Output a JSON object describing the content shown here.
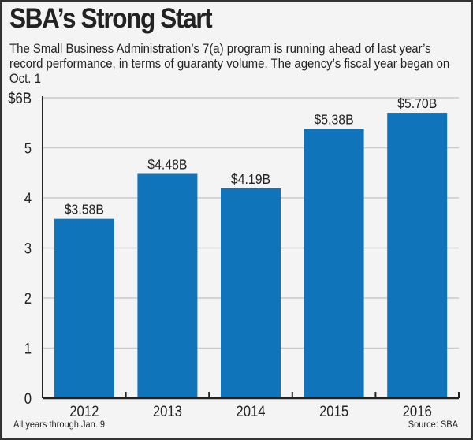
{
  "title": "SBA’s Strong Start",
  "subtitle": "The Small Business Administration’s 7(a) program is running ahead of last year’s record performance, in terms of guaranty volume. The agency’s fiscal year began on Oct. 1",
  "chart_data": {
    "type": "bar",
    "title": "SBA’s Strong Start",
    "categories": [
      "2012",
      "2013",
      "2014",
      "2015",
      "2016"
    ],
    "values": [
      3.58,
      4.48,
      4.19,
      5.38,
      5.7
    ],
    "data_labels": [
      "$3.58B",
      "$4.48B",
      "$4.19B",
      "$5.38B",
      "$5.70B"
    ],
    "ylim": [
      0,
      6
    ],
    "yticks": [
      "0",
      "1",
      "2",
      "3",
      "4",
      "5",
      "$6B"
    ],
    "grid": true,
    "bar_color": "#1074bb"
  },
  "footnote": "All years through Jan. 9",
  "source": "Source: SBA"
}
